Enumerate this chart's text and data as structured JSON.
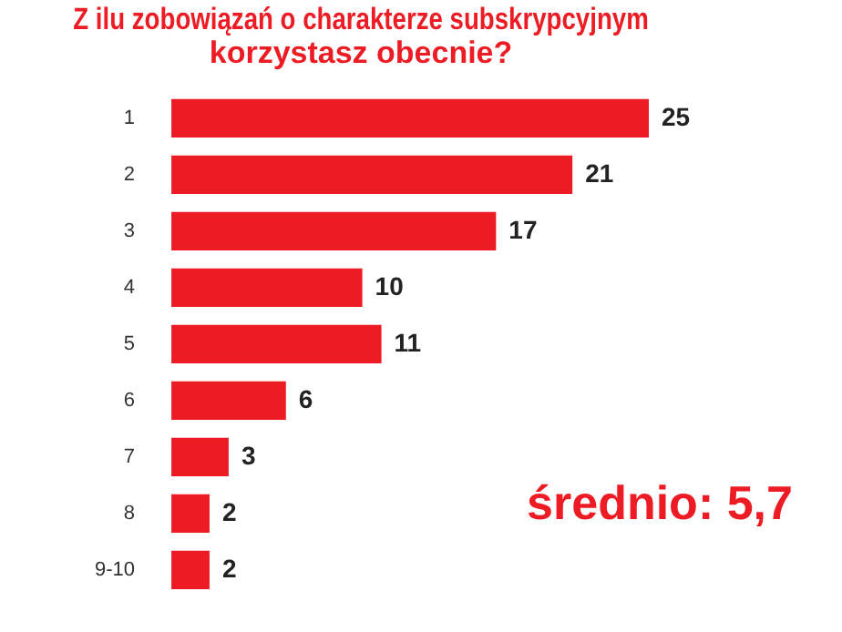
{
  "chart_data": {
    "type": "bar",
    "orientation": "horizontal",
    "title": "Z ilu zobowiązań o charakterze subskrypcyjnym\nkorzystasz obecnie?",
    "categories": [
      "1",
      "2",
      "3",
      "4",
      "5",
      "6",
      "7",
      "8",
      "9-10"
    ],
    "values": [
      25,
      21,
      17,
      10,
      11,
      6,
      3,
      2,
      2
    ],
    "color": "#ed1c24",
    "data_labels": true,
    "grid": false,
    "legend": false,
    "annotations": [
      "średnio: 5,7"
    ]
  }
}
